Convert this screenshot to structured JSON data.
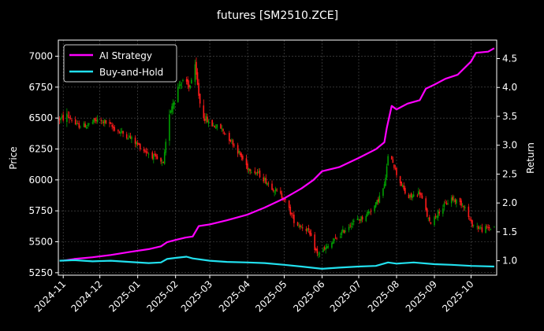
{
  "chart_data": {
    "type": "candlestick-line",
    "title": "futures [SM2510.ZCE]",
    "ylabel_left": "Price",
    "ylabel_right": "Return",
    "ylim_left": [
      5230,
      7130
    ],
    "ylim_right": [
      0.75,
      4.82
    ],
    "xlim": [
      "2024-10-28",
      "2025-10-22"
    ],
    "left_ticks": [
      5250,
      5500,
      5750,
      6000,
      6250,
      6500,
      6750,
      7000
    ],
    "right_ticks": [
      1.0,
      1.5,
      2.0,
      2.5,
      3.0,
      3.5,
      4.0,
      4.5
    ],
    "x_ticks": [
      {
        "date": "2024-11-01",
        "label": "2024-11"
      },
      {
        "date": "2024-12-01",
        "label": "2024-12"
      },
      {
        "date": "2025-01-01",
        "label": "2025-01"
      },
      {
        "date": "2025-02-01",
        "label": "2025-02"
      },
      {
        "date": "2025-03-01",
        "label": "2025-03"
      },
      {
        "date": "2025-04-01",
        "label": "2025-04"
      },
      {
        "date": "2025-05-01",
        "label": "2025-05"
      },
      {
        "date": "2025-06-01",
        "label": "2025-06"
      },
      {
        "date": "2025-07-01",
        "label": "2025-07"
      },
      {
        "date": "2025-08-01",
        "label": "2025-08"
      },
      {
        "date": "2025-09-01",
        "label": "2025-09"
      },
      {
        "date": "2025-10-01",
        "label": "2025-10"
      }
    ],
    "grid": true,
    "legend_position": "top-left",
    "colors": {
      "background": "#000000",
      "up": "#00a000",
      "down": "#ff1a1a",
      "ai": "#ff00ff",
      "bh": "#22e0ee",
      "grid": "#555555"
    },
    "series": [
      {
        "name": "AI Strategy",
        "axis": "right",
        "points": [
          [
            "2024-11-01",
            1.0
          ],
          [
            "2024-11-10",
            1.03
          ],
          [
            "2024-11-25",
            1.06
          ],
          [
            "2024-12-10",
            1.1
          ],
          [
            "2024-12-25",
            1.15
          ],
          [
            "2025-01-10",
            1.2
          ],
          [
            "2025-01-20",
            1.25
          ],
          [
            "2025-01-25",
            1.32
          ],
          [
            "2025-02-01",
            1.36
          ],
          [
            "2025-02-09",
            1.4
          ],
          [
            "2025-02-15",
            1.42
          ],
          [
            "2025-02-20",
            1.6
          ],
          [
            "2025-03-01",
            1.63
          ],
          [
            "2025-03-15",
            1.7
          ],
          [
            "2025-04-01",
            1.8
          ],
          [
            "2025-04-15",
            1.92
          ],
          [
            "2025-05-01",
            2.08
          ],
          [
            "2025-05-15",
            2.25
          ],
          [
            "2025-05-25",
            2.4
          ],
          [
            "2025-06-01",
            2.55
          ],
          [
            "2025-06-15",
            2.62
          ],
          [
            "2025-07-01",
            2.78
          ],
          [
            "2025-07-15",
            2.93
          ],
          [
            "2025-07-22",
            3.05
          ],
          [
            "2025-07-24",
            3.3
          ],
          [
            "2025-07-28",
            3.68
          ],
          [
            "2025-08-01",
            3.62
          ],
          [
            "2025-08-10",
            3.72
          ],
          [
            "2025-08-20",
            3.78
          ],
          [
            "2025-08-25",
            3.98
          ],
          [
            "2025-09-01",
            4.05
          ],
          [
            "2025-09-10",
            4.15
          ],
          [
            "2025-09-20",
            4.22
          ],
          [
            "2025-10-01",
            4.45
          ],
          [
            "2025-10-05",
            4.6
          ],
          [
            "2025-10-15",
            4.62
          ],
          [
            "2025-10-20",
            4.68
          ]
        ]
      },
      {
        "name": "Buy-and-Hold",
        "axis": "right",
        "points": [
          [
            "2024-10-29",
            1.0
          ],
          [
            "2024-11-10",
            1.01
          ],
          [
            "2024-11-25",
            0.99
          ],
          [
            "2024-12-10",
            1.0
          ],
          [
            "2024-12-25",
            0.98
          ],
          [
            "2025-01-10",
            0.96
          ],
          [
            "2025-01-20",
            0.97
          ],
          [
            "2025-01-25",
            1.03
          ],
          [
            "2025-02-01",
            1.05
          ],
          [
            "2025-02-10",
            1.07
          ],
          [
            "2025-02-15",
            1.04
          ],
          [
            "2025-03-01",
            1.0
          ],
          [
            "2025-03-15",
            0.98
          ],
          [
            "2025-04-01",
            0.97
          ],
          [
            "2025-04-15",
            0.96
          ],
          [
            "2025-05-01",
            0.93
          ],
          [
            "2025-05-15",
            0.9
          ],
          [
            "2025-06-01",
            0.86
          ],
          [
            "2025-06-15",
            0.88
          ],
          [
            "2025-07-01",
            0.9
          ],
          [
            "2025-07-15",
            0.91
          ],
          [
            "2025-07-25",
            0.97
          ],
          [
            "2025-08-01",
            0.95
          ],
          [
            "2025-08-15",
            0.97
          ],
          [
            "2025-09-01",
            0.94
          ],
          [
            "2025-09-15",
            0.93
          ],
          [
            "2025-10-01",
            0.91
          ],
          [
            "2025-10-20",
            0.9
          ]
        ]
      }
    ],
    "price_path": [
      [
        "2024-10-29",
        6490
      ],
      [
        "2024-11-05",
        6520
      ],
      [
        "2024-11-12",
        6440
      ],
      [
        "2024-11-20",
        6440
      ],
      [
        "2024-11-28",
        6480
      ],
      [
        "2024-12-05",
        6470
      ],
      [
        "2024-12-15",
        6400
      ],
      [
        "2024-12-25",
        6350
      ],
      [
        "2025-01-05",
        6250
      ],
      [
        "2025-01-15",
        6180
      ],
      [
        "2025-01-22",
        6120
      ],
      [
        "2025-01-27",
        6550
      ],
      [
        "2025-02-05",
        6800
      ],
      [
        "2025-02-12",
        6750
      ],
      [
        "2025-02-17",
        6900
      ],
      [
        "2025-02-22",
        6550
      ],
      [
        "2025-03-01",
        6450
      ],
      [
        "2025-03-10",
        6420
      ],
      [
        "2025-03-20",
        6300
      ],
      [
        "2025-04-01",
        6100
      ],
      [
        "2025-04-10",
        6050
      ],
      [
        "2025-04-20",
        5950
      ],
      [
        "2025-05-01",
        5850
      ],
      [
        "2025-05-10",
        5650
      ],
      [
        "2025-05-20",
        5600
      ],
      [
        "2025-05-28",
        5400
      ],
      [
        "2025-06-05",
        5450
      ],
      [
        "2025-06-15",
        5550
      ],
      [
        "2025-06-25",
        5650
      ],
      [
        "2025-07-05",
        5700
      ],
      [
        "2025-07-15",
        5800
      ],
      [
        "2025-07-22",
        5950
      ],
      [
        "2025-07-26",
        6250
      ],
      [
        "2025-08-01",
        6050
      ],
      [
        "2025-08-10",
        5850
      ],
      [
        "2025-08-20",
        5900
      ],
      [
        "2025-08-28",
        5650
      ],
      [
        "2025-09-05",
        5750
      ],
      [
        "2025-09-15",
        5850
      ],
      [
        "2025-09-25",
        5800
      ],
      [
        "2025-10-01",
        5650
      ],
      [
        "2025-10-10",
        5600
      ],
      [
        "2025-10-20",
        5620
      ]
    ]
  }
}
